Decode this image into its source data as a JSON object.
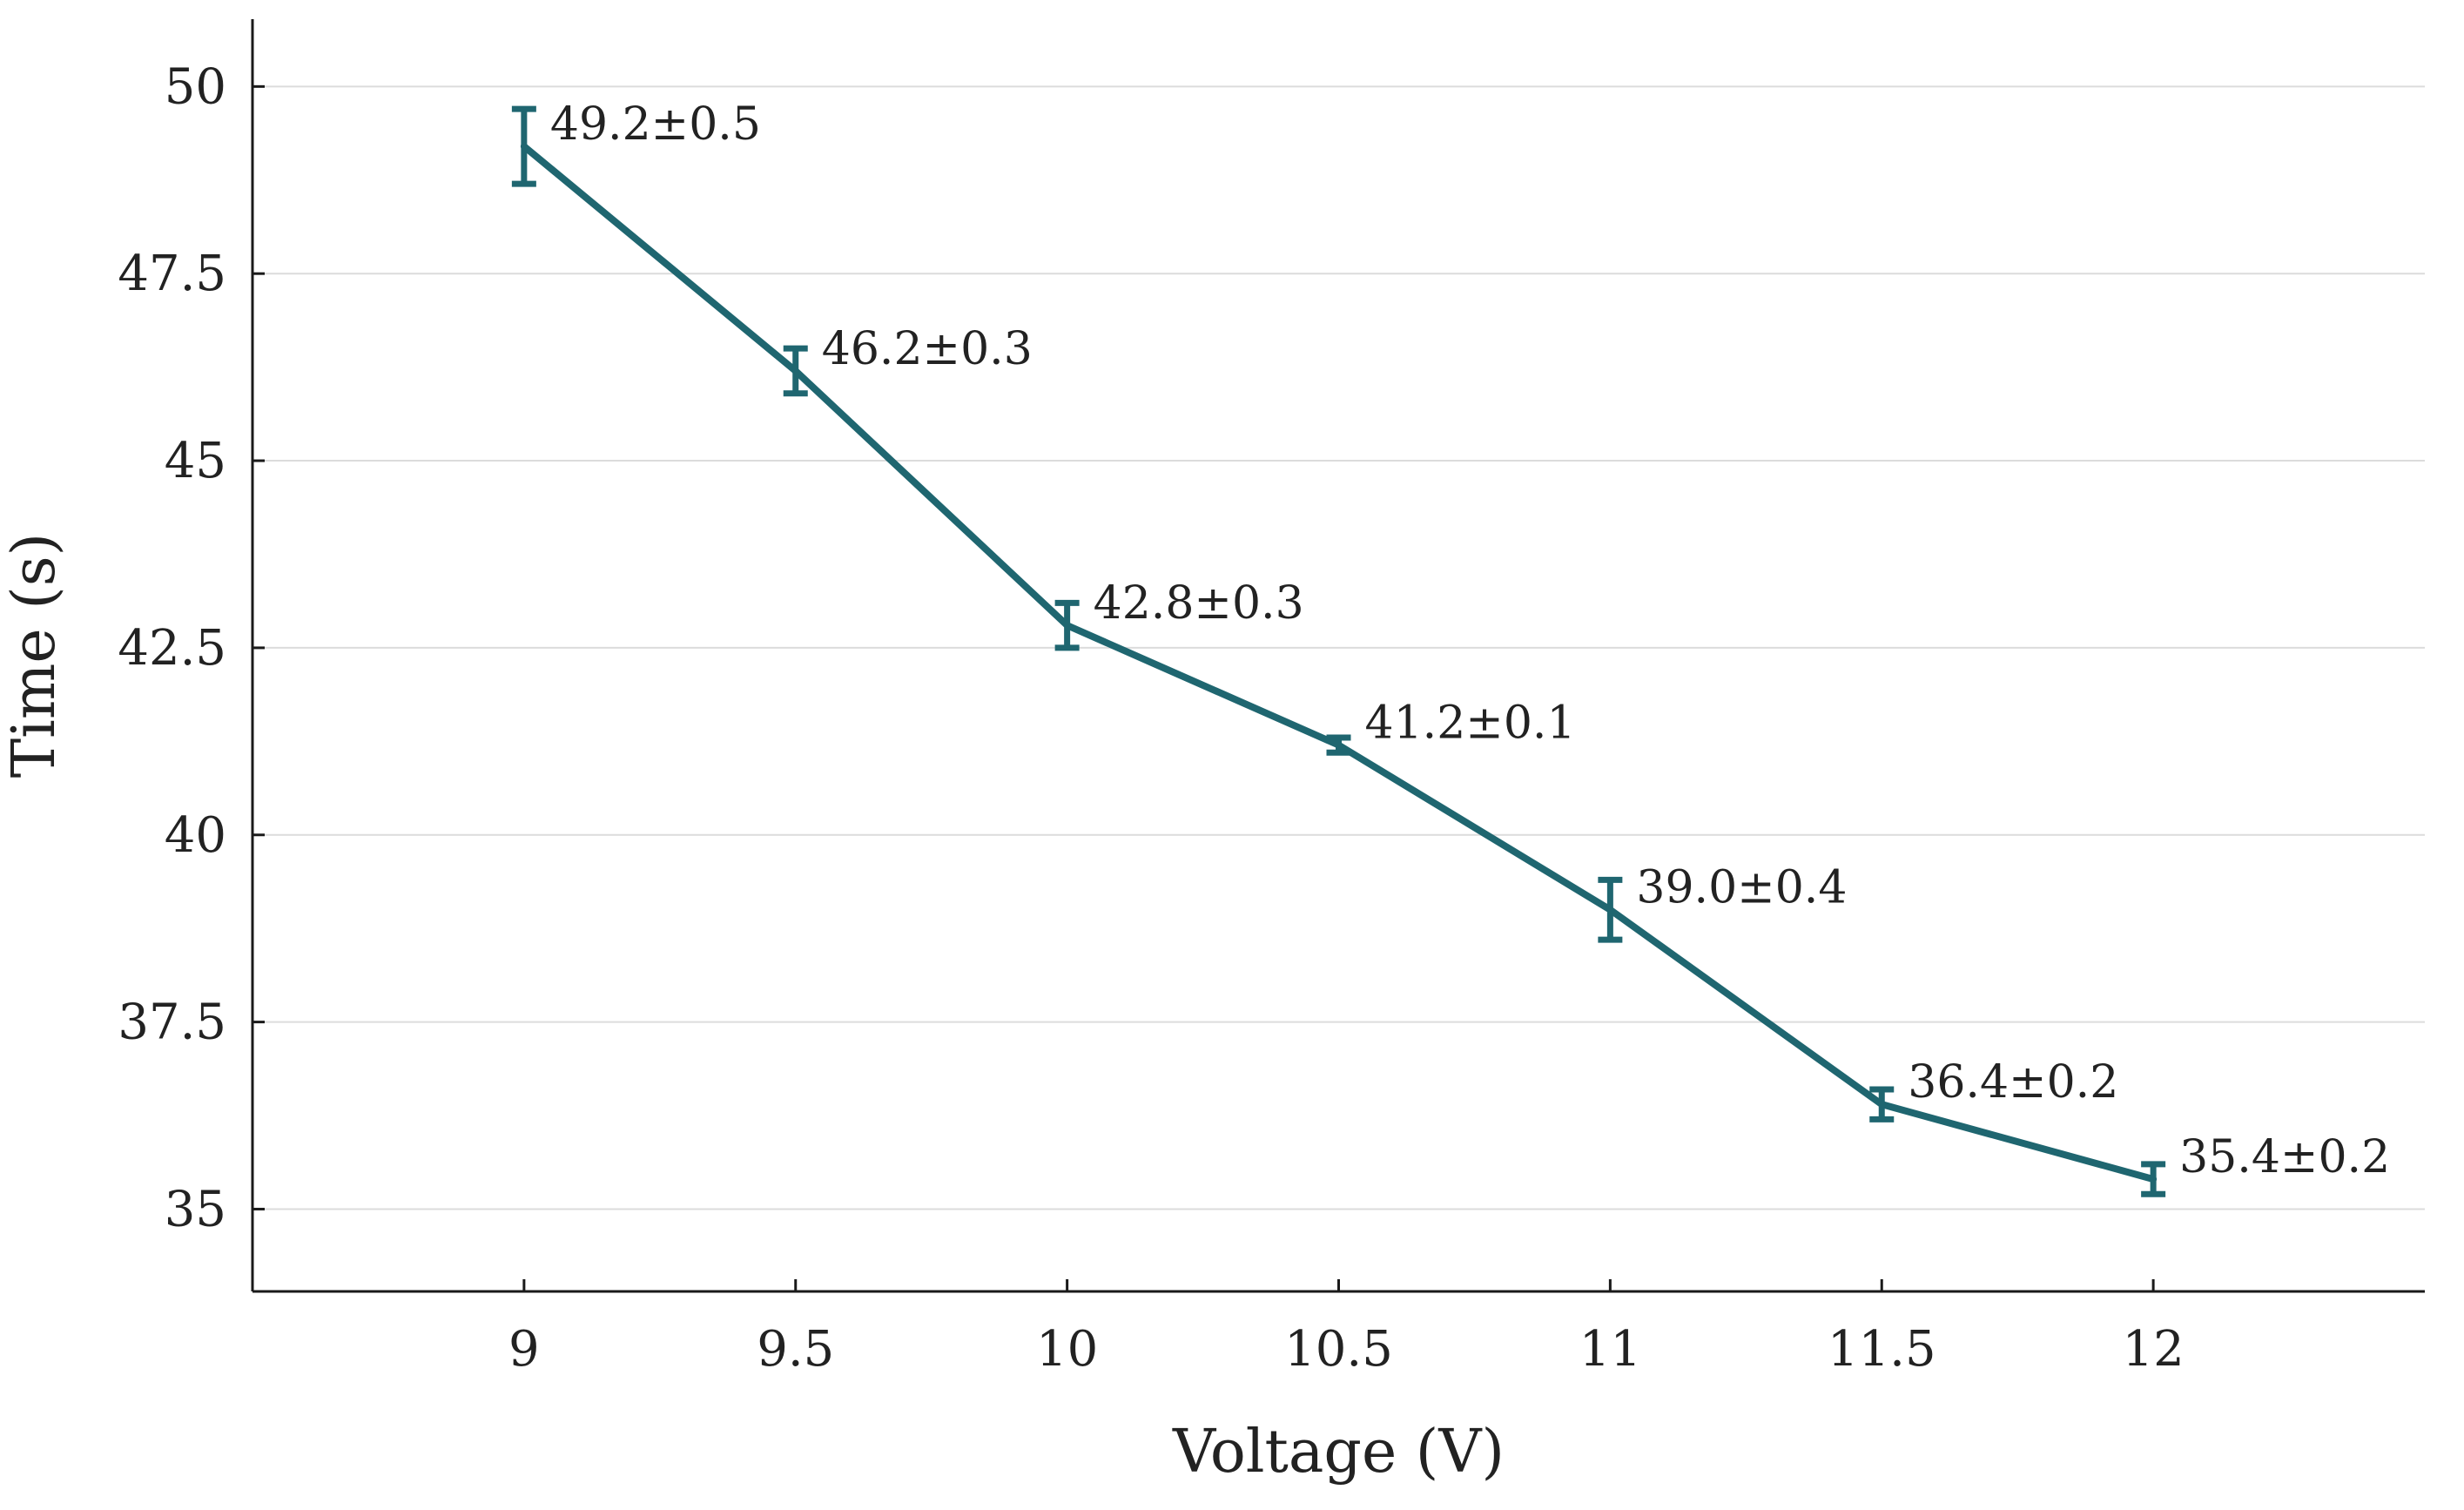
{
  "chart_data": {
    "type": "line",
    "title": "",
    "xlabel": "Voltage (V)",
    "ylabel": "Time (s)",
    "x": [
      9,
      9.5,
      10,
      10.5,
      11,
      11.5,
      12
    ],
    "xlim": [
      8.5,
      12.5
    ],
    "ylim": [
      33.9,
      50.9
    ],
    "grid": "horizontal",
    "x_ticks": [
      9,
      9.5,
      10,
      10.5,
      11,
      11.5,
      12
    ],
    "x_tick_labels": [
      "9",
      "9.5",
      "10",
      "10.5",
      "11",
      "11.5",
      "12"
    ],
    "y_ticks": [
      35,
      37.5,
      40,
      42.5,
      45,
      47.5,
      50
    ],
    "y_tick_labels": [
      "35",
      "37.5",
      "40",
      "42.5",
      "45",
      "47.5",
      "50"
    ],
    "series": [
      {
        "name": "Time",
        "color": "#1f6670",
        "values": [
          49.2,
          46.2,
          42.8,
          41.2,
          39.0,
          36.4,
          35.4
        ],
        "errors": [
          0.5,
          0.3,
          0.3,
          0.1,
          0.4,
          0.2,
          0.2
        ],
        "labels": [
          "49.2±0.5",
          "46.2±0.3",
          "42.8±0.3",
          "41.2±0.1",
          "39.0±0.4",
          "36.4±0.2",
          "35.4±0.2"
        ]
      }
    ]
  }
}
